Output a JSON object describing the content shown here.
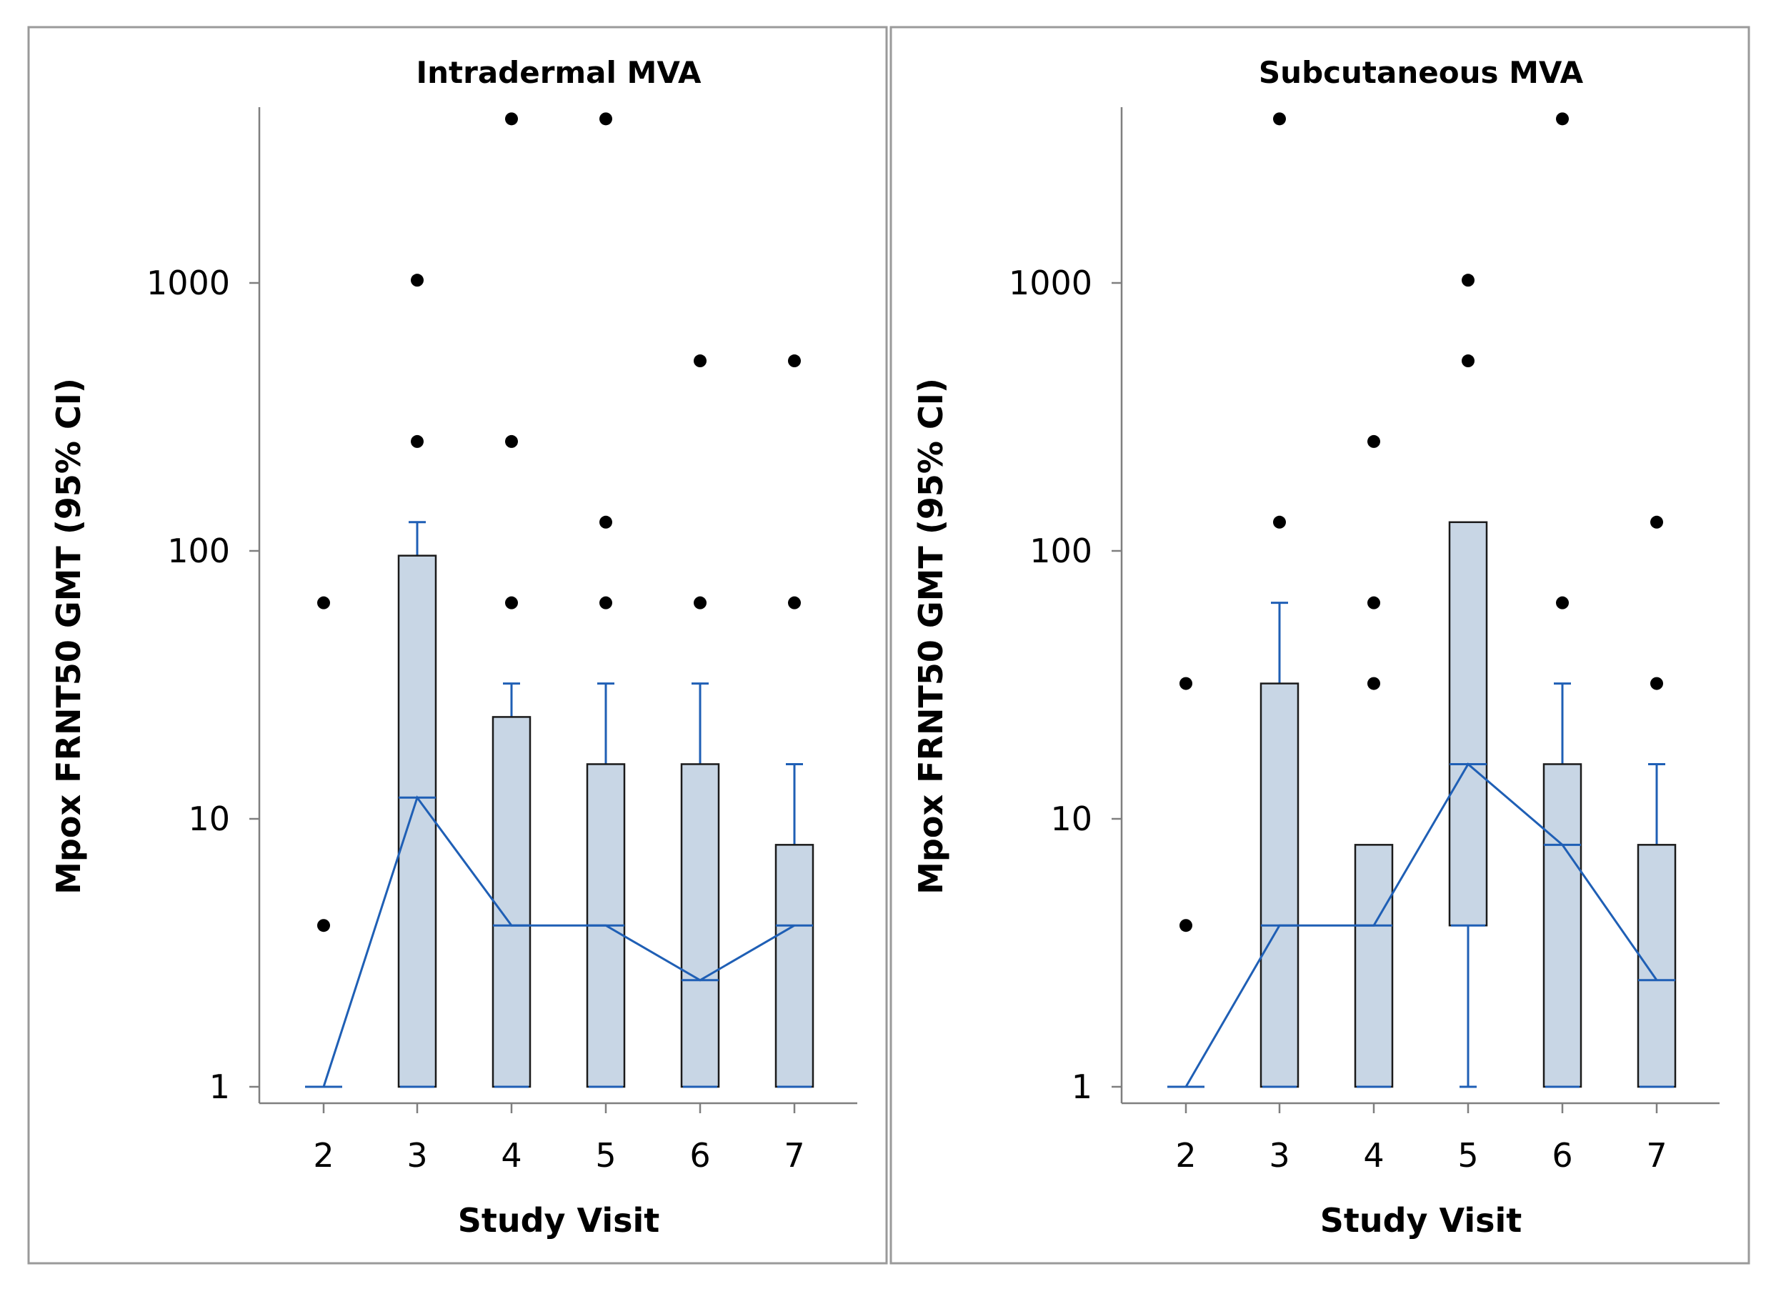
{
  "chart_data": [
    {
      "type": "box",
      "title": "Intradermal MVA",
      "xlabel": "Study Visit",
      "ylabel": "Mpox FRNT50 GMT (95% CI)",
      "yscale": "log",
      "ylim": [
        1,
        4096
      ],
      "yticks": [
        1,
        10,
        100,
        1000
      ],
      "ytick_labels": [
        "1",
        "10",
        "100",
        "1000"
      ],
      "categories": [
        "2",
        "3",
        "4",
        "5",
        "6",
        "7"
      ],
      "boxes": [
        {
          "visit": "2",
          "q1": 1,
          "median": 1,
          "q3": 1,
          "whisker_low": 1,
          "whisker_high": 1,
          "mean": 1,
          "outliers": [
            4,
            64
          ]
        },
        {
          "visit": "3",
          "q1": 1,
          "median": 12,
          "q3": 96,
          "whisker_low": 1,
          "whisker_high": 128,
          "mean": 12,
          "outliers": [
            256,
            1024
          ]
        },
        {
          "visit": "4",
          "q1": 1,
          "median": 4,
          "q3": 24,
          "whisker_low": 1,
          "whisker_high": 32,
          "mean": 4,
          "outliers": [
            64,
            256,
            4096
          ]
        },
        {
          "visit": "5",
          "q1": 1,
          "median": 4,
          "q3": 16,
          "whisker_low": 1,
          "whisker_high": 32,
          "mean": 4,
          "outliers": [
            64,
            128,
            4096
          ]
        },
        {
          "visit": "6",
          "q1": 1,
          "median": 2.5,
          "q3": 16,
          "whisker_low": 1,
          "whisker_high": 32,
          "mean": 2.5,
          "outliers": [
            64,
            512
          ]
        },
        {
          "visit": "7",
          "q1": 1,
          "median": 4,
          "q3": 8,
          "whisker_low": 1,
          "whisker_high": 16,
          "mean": 4,
          "outliers": [
            64,
            512
          ]
        }
      ]
    },
    {
      "type": "box",
      "title": "Subcutaneous MVA",
      "xlabel": "Study Visit",
      "ylabel": "Mpox FRNT50 GMT (95% CI)",
      "yscale": "log",
      "ylim": [
        1,
        4096
      ],
      "yticks": [
        1,
        10,
        100,
        1000
      ],
      "ytick_labels": [
        "1",
        "10",
        "100",
        "1000"
      ],
      "categories": [
        "2",
        "3",
        "4",
        "5",
        "6",
        "7"
      ],
      "boxes": [
        {
          "visit": "2",
          "q1": 1,
          "median": 1,
          "q3": 1,
          "whisker_low": 1,
          "whisker_high": 1,
          "mean": 1,
          "outliers": [
            4,
            32
          ]
        },
        {
          "visit": "3",
          "q1": 1,
          "median": 4,
          "q3": 32,
          "whisker_low": 1,
          "whisker_high": 64,
          "mean": 4,
          "outliers": [
            128,
            4096
          ]
        },
        {
          "visit": "4",
          "q1": 1,
          "median": 4,
          "q3": 8,
          "whisker_low": 1,
          "whisker_high": 8,
          "mean": 4,
          "outliers": [
            32,
            64,
            256
          ]
        },
        {
          "visit": "5",
          "q1": 4,
          "median": 16,
          "q3": 128,
          "whisker_low": 1,
          "whisker_high": 128,
          "mean": 16,
          "outliers": [
            512,
            1024
          ]
        },
        {
          "visit": "6",
          "q1": 1,
          "median": 8,
          "q3": 16,
          "whisker_low": 1,
          "whisker_high": 32,
          "mean": 8,
          "outliers": [
            64,
            4096
          ]
        },
        {
          "visit": "7",
          "q1": 1,
          "median": 2.5,
          "q3": 8,
          "whisker_low": 1,
          "whisker_high": 16,
          "mean": 2.5,
          "outliers": [
            32,
            128
          ]
        }
      ]
    }
  ]
}
